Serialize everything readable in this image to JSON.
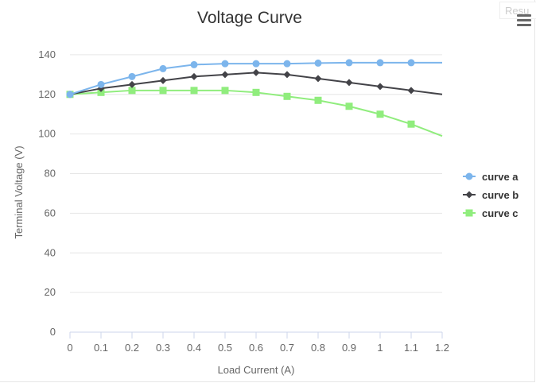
{
  "result_tab": {
    "label": "Resu"
  },
  "menu": {
    "icon": "hamburger-menu-icon"
  },
  "chart_data": {
    "type": "line",
    "title": "Voltage Curve",
    "xlabel": "Load Current (A)",
    "ylabel": "Terminal Voltage (V)",
    "x": [
      0,
      0.1,
      0.2,
      0.3,
      0.4,
      0.5,
      0.6,
      0.7,
      0.8,
      0.9,
      1,
      1.1,
      1.2
    ],
    "x_tick_labels": [
      "0",
      "0.1",
      "0.2",
      "0.3",
      "0.4",
      "0.5",
      "0.6",
      "0.7",
      "0.8",
      "0.9",
      "1",
      "1.1",
      "1.2"
    ],
    "xlim": [
      0,
      1.2
    ],
    "ylim": [
      0,
      150
    ],
    "y_ticks": [
      0,
      20,
      40,
      60,
      80,
      100,
      120,
      140
    ],
    "grid": true,
    "legend_position": "right",
    "series": [
      {
        "name": "curve a",
        "color": "#7cb5ec",
        "marker": "circle",
        "values": [
          120,
          125,
          129,
          133,
          135,
          135.5,
          135.5,
          135.5,
          135.8,
          136,
          136,
          136,
          136
        ]
      },
      {
        "name": "curve b",
        "color": "#434348",
        "marker": "diamond",
        "values": [
          120,
          123,
          125,
          127,
          129,
          130,
          131,
          130,
          128,
          126,
          124,
          122,
          120
        ]
      },
      {
        "name": "curve c",
        "color": "#90ed7d",
        "marker": "square",
        "values": [
          120,
          121,
          122,
          122,
          122,
          122,
          121,
          119,
          117,
          114,
          110,
          105,
          99
        ]
      }
    ]
  }
}
